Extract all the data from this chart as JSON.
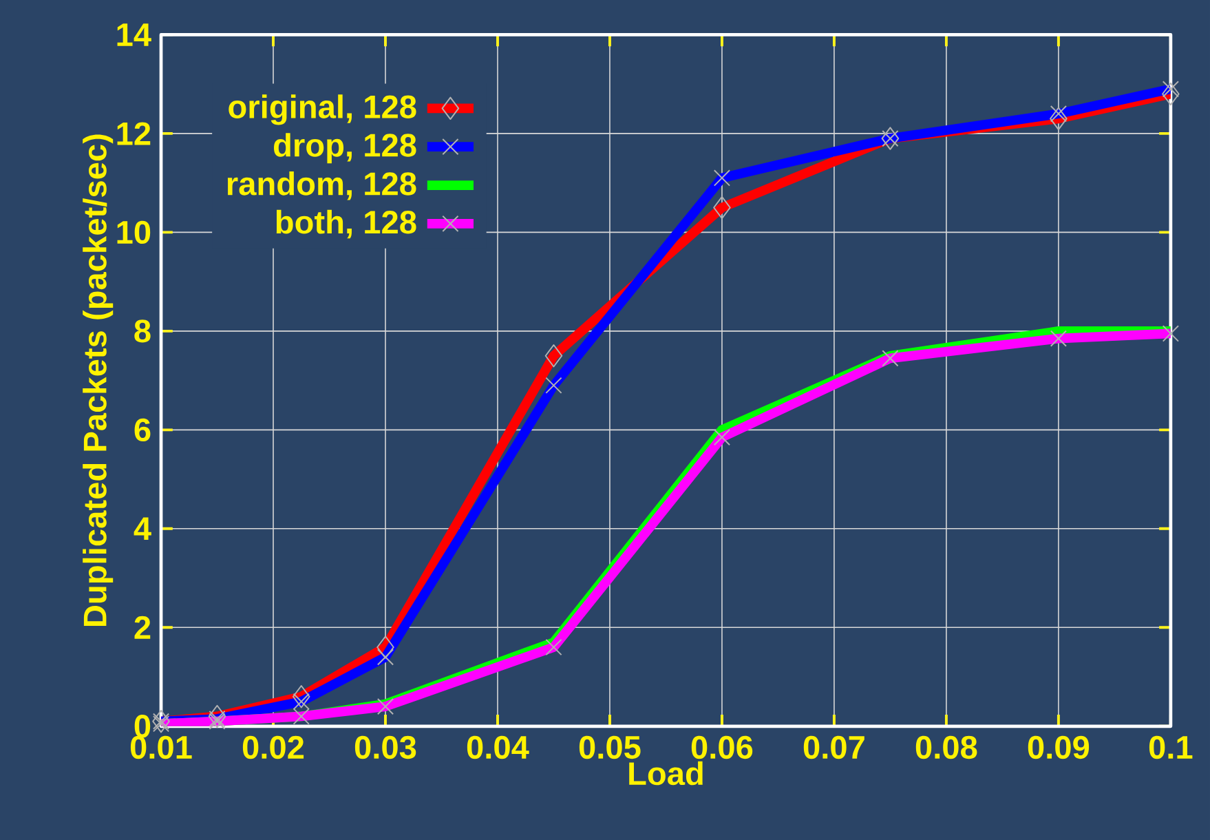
{
  "chart_data": {
    "type": "line",
    "xlabel": "Load",
    "ylabel": "Duplicated Packets (packet/sec)",
    "x": [
      0.01,
      0.015,
      0.0225,
      0.03,
      0.045,
      0.06,
      0.075,
      0.09,
      0.1
    ],
    "series": [
      {
        "name": "original, 128",
        "color": "#ff0000",
        "marker": "diamond",
        "values": [
          0.1,
          0.2,
          0.6,
          1.6,
          7.5,
          10.5,
          11.9,
          12.3,
          12.8
        ]
      },
      {
        "name": "drop, 128",
        "color": "#0000ff",
        "marker": "cross",
        "values": [
          0.1,
          0.15,
          0.5,
          1.4,
          6.9,
          11.1,
          11.9,
          12.4,
          12.9
        ]
      },
      {
        "name": "random, 128",
        "color": "#00ff00",
        "marker": "none",
        "values": [
          0.05,
          0.1,
          0.2,
          0.45,
          1.7,
          6.0,
          7.5,
          8.0,
          8.0
        ]
      },
      {
        "name": "both, 128",
        "color": "#ff00ff",
        "marker": "cross",
        "values": [
          0.05,
          0.1,
          0.2,
          0.4,
          1.6,
          5.85,
          7.45,
          7.85,
          7.95
        ]
      }
    ],
    "xlim": [
      0.01,
      0.1
    ],
    "ylim": [
      0,
      14
    ],
    "xticks": [
      0.01,
      0.02,
      0.03,
      0.04,
      0.05,
      0.06,
      0.07,
      0.08,
      0.09,
      0.1
    ],
    "yticks": [
      0,
      2,
      4,
      6,
      8,
      10,
      12,
      14
    ],
    "grid": true,
    "legend": "top left"
  }
}
